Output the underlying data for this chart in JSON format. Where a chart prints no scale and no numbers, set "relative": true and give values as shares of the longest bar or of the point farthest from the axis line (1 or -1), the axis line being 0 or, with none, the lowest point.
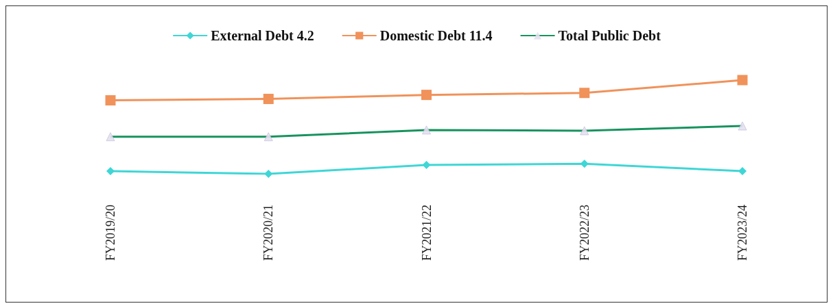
{
  "chart_data": {
    "type": "line",
    "relative": true,
    "categories": [
      "FY2019/20",
      "FY2020/21",
      "FY2021/22",
      "FY2022/23",
      "FY2023/24"
    ],
    "series": [
      {
        "name": "External Debt 4.2",
        "color": "#3fd6d6",
        "marker": "diamond",
        "values": [
          0.029,
          0,
          0.094,
          0.108,
          0.029
        ]
      },
      {
        "name": "Domestic Debt 11.4",
        "color": "#f0925a",
        "marker": "square",
        "values": [
          0.784,
          0.799,
          0.842,
          0.863,
          1
        ]
      },
      {
        "name": "Total Public Debt",
        "color": "#17935e",
        "marker": "triangle",
        "values": [
          0.396,
          0.396,
          0.468,
          0.46,
          0.511
        ]
      }
    ],
    "legend": "top",
    "grid": false
  }
}
